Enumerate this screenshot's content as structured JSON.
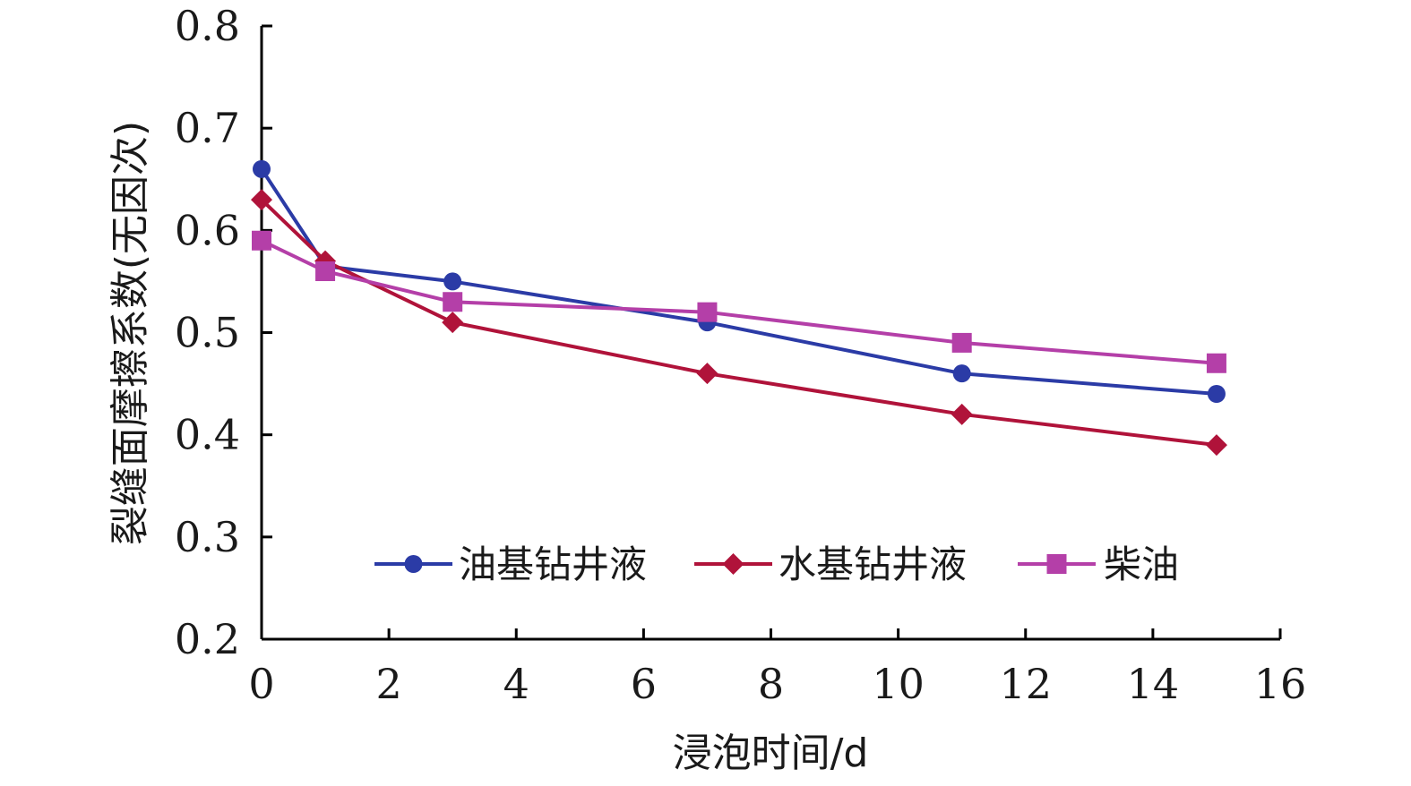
{
  "chart_data": {
    "type": "line",
    "title": "",
    "xlabel": "浸泡时间/d",
    "ylabel": "裂缝面摩擦系数(无因次)",
    "xlim": [
      0,
      16
    ],
    "ylim": [
      0.2,
      0.8
    ],
    "xticks": [
      "0",
      "2",
      "4",
      "6",
      "8",
      "10",
      "12",
      "14",
      "16"
    ],
    "yticks": [
      "0.2",
      "0.3",
      "0.4",
      "0.5",
      "0.6",
      "0.7",
      "0.8"
    ],
    "grid": false,
    "legend_position": "inside-bottom",
    "x": [
      0,
      1,
      3,
      7,
      11,
      15
    ],
    "series": [
      {
        "name": "油基钻井液",
        "marker": "circle",
        "color": "#2b3ba6",
        "values": [
          0.66,
          0.565,
          0.55,
          0.51,
          0.46,
          0.44
        ]
      },
      {
        "name": "水基钻井液",
        "marker": "diamond",
        "color": "#b0133a",
        "values": [
          0.63,
          0.57,
          0.51,
          0.46,
          0.42,
          0.39
        ]
      },
      {
        "name": "柴油",
        "marker": "square",
        "color": "#b43fa8",
        "values": [
          0.59,
          0.56,
          0.53,
          0.52,
          0.49,
          0.47
        ]
      }
    ]
  }
}
